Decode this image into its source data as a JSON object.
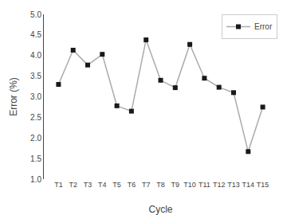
{
  "chart_data": {
    "type": "line",
    "xlabel": "Cycle",
    "ylabel": "Error (%)",
    "categories": [
      "T1",
      "T2",
      "T3",
      "T4",
      "T5",
      "T6",
      "T7",
      "T8",
      "T9",
      "T10",
      "T11",
      "T12",
      "T13",
      "T14",
      "T15"
    ],
    "series": [
      {
        "name": "Error",
        "color": "#aaaaaa",
        "marker": "square",
        "colors": [
          "#1a1a1a",
          "#1a1a1a",
          "#1a1a1a",
          "#1a1a1a",
          "#1a1a1a",
          "#1a1a1a",
          "#1a1a1a",
          "#1a1a1a",
          "#1a1a1a",
          "#1a1a1a",
          "#1a1a1a",
          "#1a1a1a",
          "#1a1a1a",
          "#1a1a1a",
          "#1a1a1a"
        ],
        "values": [
          3.3,
          4.13,
          3.77,
          4.03,
          2.78,
          2.65,
          4.38,
          3.4,
          3.22,
          4.27,
          3.45,
          3.23,
          3.1,
          1.67,
          2.75
        ]
      }
    ],
    "ylim": [
      1.0,
      5.0
    ],
    "yticks": [
      {
        "value": 1.0,
        "label": "1.0"
      },
      1.5,
      {
        "value": 2.0,
        "label": "2.0"
      },
      2.5,
      {
        "value": 3.0,
        "label": "3.0"
      },
      3.5,
      {
        "value": 4.0,
        "label": "4.0"
      },
      4.5,
      {
        "value": 5.0,
        "label": "5.0"
      }
    ],
    "legend": "upper right",
    "grid": false
  }
}
